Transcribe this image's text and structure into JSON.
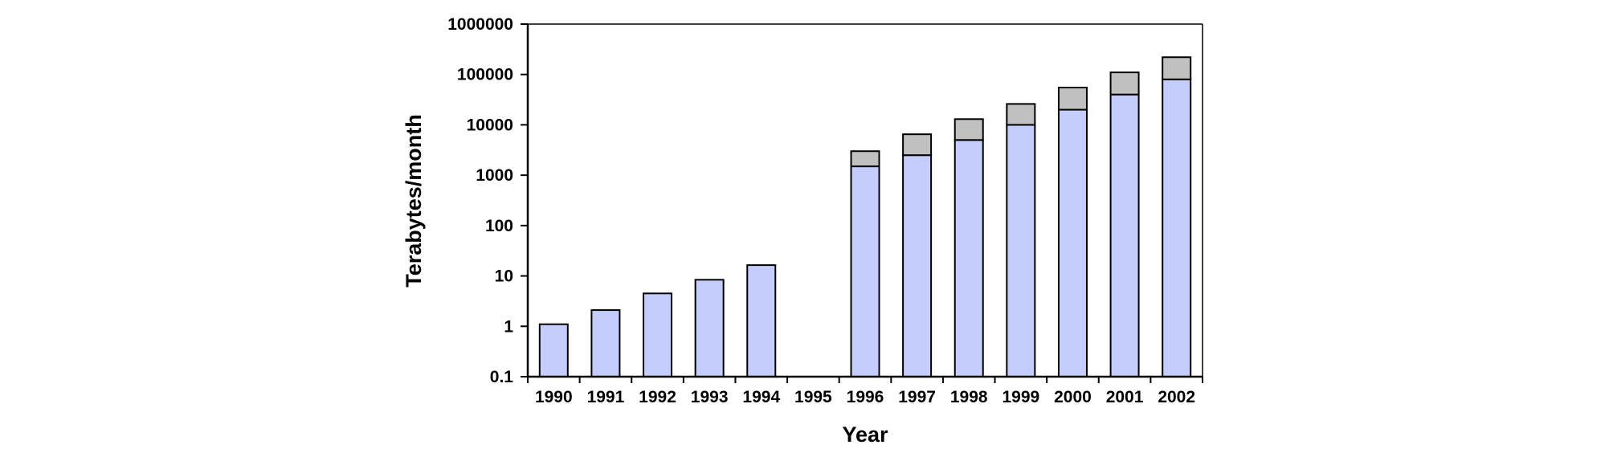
{
  "chart_data": {
    "type": "bar",
    "stacked": true,
    "title": "",
    "xlabel": "Year",
    "ylabel": "Terabytes/month",
    "yscale": "log",
    "ylim": [
      0.1,
      1000000
    ],
    "yticks": [
      "0.1",
      "1",
      "10",
      "100",
      "1000",
      "10000",
      "100000",
      "1000000"
    ],
    "categories": [
      "1990",
      "1991",
      "1992",
      "1993",
      "1994",
      "1995",
      "1996",
      "1997",
      "1998",
      "1999",
      "2000",
      "2001",
      "2002"
    ],
    "series": [
      {
        "values": [
          1,
          2,
          4.4,
          8.3,
          16.3,
          null,
          1500,
          2500,
          5000,
          10000,
          20000,
          40000,
          80000
        ]
      },
      {
        "values": [
          null,
          null,
          null,
          null,
          null,
          null,
          1500,
          4000,
          8000,
          16000,
          35000,
          70000,
          140000
        ]
      }
    ],
    "grid": false,
    "legend": "none",
    "colors": {
      "series1": "#c4cdfb",
      "series2": "#c0c0c0",
      "outline": "#000000"
    }
  }
}
